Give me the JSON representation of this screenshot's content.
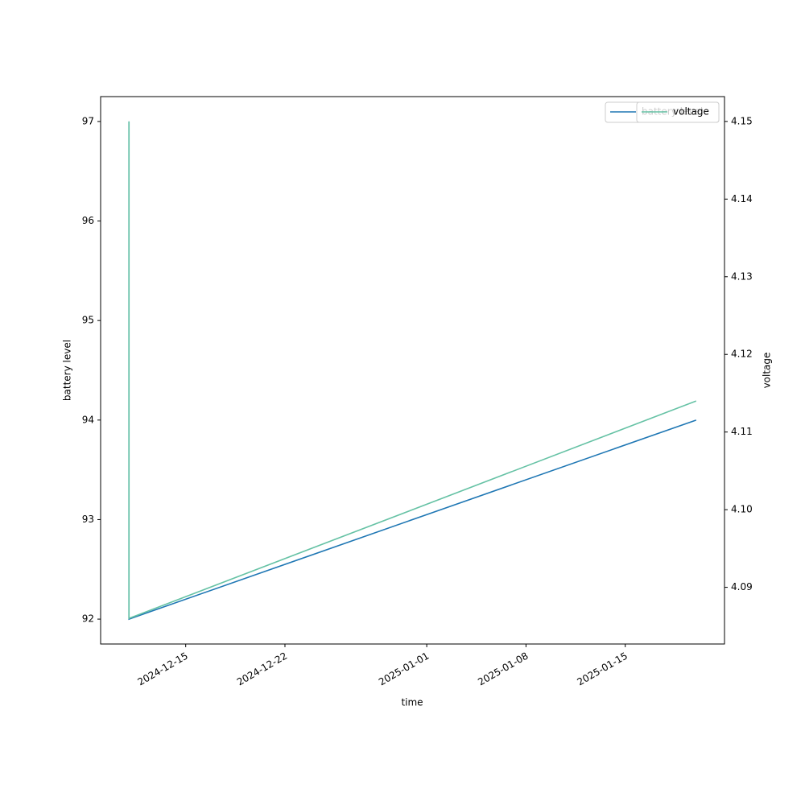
{
  "chart_data": {
    "type": "line",
    "x": [
      "2024-12-11",
      "2024-12-11",
      "2025-01-20"
    ],
    "series": [
      {
        "name": "battery level",
        "color": "#1f77b4",
        "values": [
          97,
          92,
          94
        ],
        "axis": "y"
      },
      {
        "name": "voltage",
        "color": "#66c2a5",
        "values": [
          4.15,
          4.086,
          4.114
        ],
        "axis": "y2"
      }
    ],
    "xlabel": "time",
    "ylabel": "battery level",
    "y2label": "voltage",
    "xlim": [
      "2024-12-09",
      "2025-01-22"
    ],
    "xticks": [
      "2024-12-15",
      "2024-12-22",
      "2025-01-01",
      "2025-01-08",
      "2025-01-15"
    ],
    "ylim": [
      91.75,
      97.25
    ],
    "yticks": [
      92,
      93,
      94,
      95,
      96,
      97
    ],
    "y2lim": [
      4.0827,
      4.1532
    ],
    "y2ticks": [
      {
        "value": 4.09,
        "label": "4.09"
      },
      {
        "value": 4.1,
        "label": "4.10"
      },
      {
        "value": 4.11,
        "label": "4.11"
      },
      {
        "value": 4.12,
        "label": "4.12"
      },
      {
        "value": 4.13,
        "label": "4.13"
      },
      {
        "value": 4.14,
        "label": "4.14"
      },
      {
        "value": 4.15,
        "label": "4.15"
      }
    ],
    "legend": "upper right",
    "grid": false
  }
}
